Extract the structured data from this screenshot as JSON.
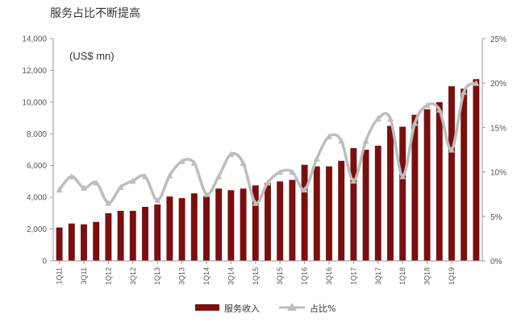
{
  "chart_data": {
    "type": "bar",
    "title": "服务占比不断提高",
    "unit_label": "(US$ mn)",
    "y_left": {
      "min": 0,
      "max": 14000,
      "ticks": [
        "0",
        "2,000",
        "4,000",
        "6,000",
        "8,000",
        "10,000",
        "12,000",
        "14,000"
      ]
    },
    "y_right": {
      "min": 0,
      "max": 25,
      "ticks": [
        "0%",
        "5%",
        "10%",
        "15%",
        "20%",
        "25%"
      ]
    },
    "x_tick_labels": [
      "1Q11",
      "3Q11",
      "1Q12",
      "3Q12",
      "1Q13",
      "3Q13",
      "1Q14",
      "3Q14",
      "1Q15",
      "3Q15",
      "1Q16",
      "3Q16",
      "1Q17",
      "3Q17",
      "1Q18",
      "3Q18",
      "1Q19"
    ],
    "categories": [
      "1Q11",
      "2Q11",
      "3Q11",
      "4Q11",
      "1Q12",
      "2Q12",
      "3Q12",
      "4Q12",
      "1Q13",
      "2Q13",
      "3Q13",
      "4Q13",
      "1Q14",
      "2Q14",
      "3Q14",
      "4Q14",
      "1Q15",
      "2Q15",
      "3Q15",
      "4Q15",
      "1Q16",
      "2Q16",
      "3Q16",
      "4Q16",
      "1Q17",
      "2Q17",
      "3Q17",
      "4Q17",
      "1Q18",
      "2Q18",
      "3Q18",
      "4Q18",
      "1Q19",
      "2Q19",
      "3Q19"
    ],
    "series": [
      {
        "name": "服务收入",
        "kind": "bar",
        "axis": "left",
        "color": "#7b0f0f",
        "values": [
          2100,
          2350,
          2300,
          2450,
          3000,
          3150,
          3150,
          3400,
          3550,
          4050,
          3950,
          4250,
          4100,
          4550,
          4450,
          4550,
          4750,
          4900,
          5000,
          5100,
          6050,
          5950,
          5950,
          6300,
          7100,
          7000,
          7250,
          8500,
          8450,
          9200,
          9550,
          10000,
          11000,
          10850,
          11450
        ]
      },
      {
        "name": "占比%",
        "kind": "line",
        "axis": "right",
        "color": "#bdbdbd",
        "values": [
          8.0,
          9.5,
          8.2,
          8.8,
          6.5,
          8.3,
          9.0,
          9.5,
          6.8,
          9.6,
          11.2,
          11.0,
          7.5,
          9.5,
          12.0,
          11.0,
          6.5,
          8.8,
          10.0,
          10.0,
          8.0,
          11.5,
          14.0,
          13.5,
          9.0,
          13.5,
          16.0,
          16.0,
          9.5,
          15.5,
          17.5,
          17.0,
          12.5,
          19.0,
          20.0
        ]
      }
    ],
    "legend": {
      "position": "bottom-center",
      "items": [
        "服务收入",
        "占比%"
      ]
    }
  }
}
